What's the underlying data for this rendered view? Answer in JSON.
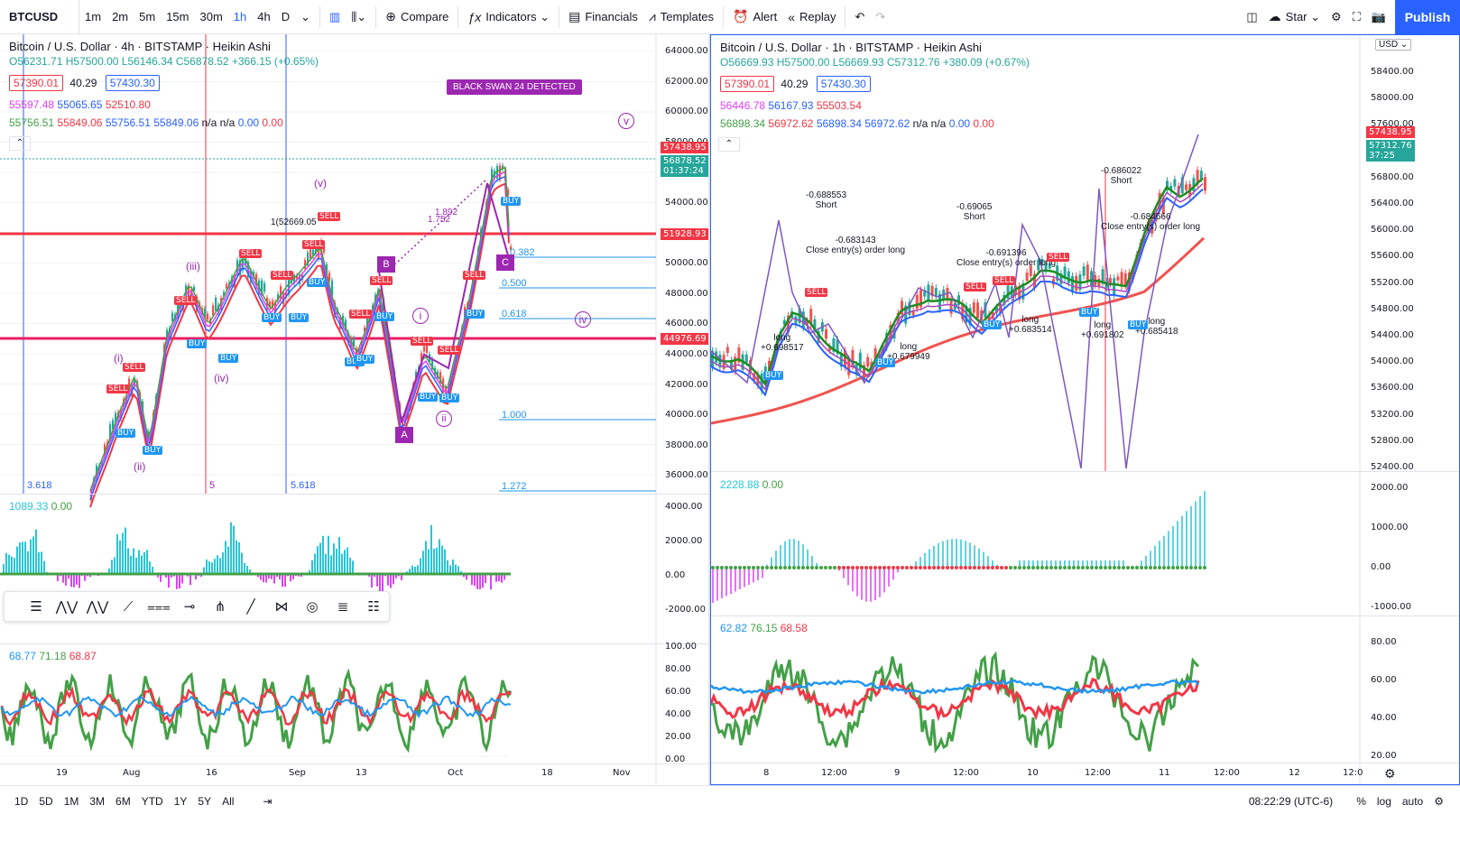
{
  "toolbar": {
    "symbol": "BTCUSD",
    "intervals": [
      "1m",
      "2m",
      "5m",
      "15m",
      "30m",
      "1h",
      "4h",
      "D"
    ],
    "active_interval": "1h",
    "compare": "Compare",
    "indicators": "Indicators",
    "financials": "Financials",
    "templates": "Templates",
    "alert": "Alert",
    "replay": "Replay",
    "star": "Star",
    "publish": "Publish"
  },
  "left_chart": {
    "title": "Bitcoin / U.S. Dollar · 4h · BITSTAMP · Heikin Ashi",
    "ohlc": "O56231.71 H57500.00 L56146.34 C56878.52 +366.15 (+0.65%)",
    "bid": "57390.01",
    "spread": "40.29",
    "ask": "57430.30",
    "ind1": [
      "55597.48",
      "55065.65",
      "52510.80"
    ],
    "ind2": [
      "55756.51",
      "55849.06",
      "55756.51",
      "55849.06",
      "n/a",
      "n/a",
      "0.00",
      "0.00"
    ],
    "price_axis": [
      "64000.00",
      "62000.00",
      "60000.00",
      "58000.00",
      "56000.00",
      "54000.00",
      "52000.00",
      "50000.00",
      "48000.00",
      "46000.00",
      "44000.00",
      "42000.00",
      "40000.00",
      "38000.00",
      "36000.00"
    ],
    "price_tags": {
      "last": "57438.95",
      "current": "56878.52",
      "countdown": "01:37:24",
      "red_line": "51928.93",
      "pink_line": "44976.69"
    },
    "black_swan": "BLACK SWAN 24 DETECTED",
    "fibs": [
      "0.382",
      "0.500",
      "0.618",
      "1.000",
      "1.272"
    ],
    "wave_labels": [
      "(v)",
      "(i)",
      "(ii)",
      "(iii)",
      "(iv)",
      "iv",
      "v",
      "i",
      "ii",
      "A",
      "C",
      "B"
    ],
    "elliott_ratios": [
      "1.892",
      "1.752",
      "3.618",
      "5",
      "5.618"
    ],
    "annot_left": "1(52669.05",
    "osc_legend": [
      "1089.33",
      "0.00"
    ],
    "osc_axis": [
      "4000.00",
      "2000.00",
      "0.00",
      "-2000.00"
    ],
    "rsi_legend": [
      "68.77",
      "71.18",
      "68.87"
    ],
    "rsi_axis": [
      "100.00",
      "80.00",
      "60.00",
      "40.00",
      "20.00",
      "0.00"
    ],
    "time_axis": [
      "19",
      "Aug",
      "16",
      "Sep",
      "13",
      "Oct",
      "18",
      "Nov"
    ]
  },
  "right_chart": {
    "title": "Bitcoin / U.S. Dollar · 1h · BITSTAMP · Heikin Ashi",
    "ohlc": "O56669.93 H57500.00 L56669.93 C57312.76 +380.09 (+0.67%)",
    "bid": "57390.01",
    "spread": "40.29",
    "ask": "57430.30",
    "ind1": [
      "56446.78",
      "56167.93",
      "55503.54"
    ],
    "ind2": [
      "56898.34",
      "56972.62",
      "56898.34",
      "56972.62",
      "n/a",
      "n/a",
      "0.00",
      "0.00"
    ],
    "currency": "USD",
    "price_axis": [
      "58400.00",
      "58000.00",
      "57600.00",
      "57200.00",
      "56800.00",
      "56400.00",
      "56000.00",
      "55600.00",
      "55200.00",
      "54800.00",
      "54400.00",
      "54000.00",
      "53600.00",
      "53200.00",
      "52800.00",
      "52400.00"
    ],
    "price_tags": {
      "last": "57438.95",
      "current": "57312.76",
      "countdown": "37:25"
    },
    "annotations": [
      {
        "lines": [
          "-0.688553",
          "Short"
        ]
      },
      {
        "lines": [
          "-0.683143",
          "Close entry(s) order long"
        ]
      },
      {
        "lines": [
          "-0.69065",
          "Short"
        ]
      },
      {
        "lines": [
          "-0.691396",
          "Close entry(s) order long"
        ]
      },
      {
        "lines": [
          "-0.686022",
          "Short"
        ]
      },
      {
        "lines": [
          "-0.684666",
          "Close entry(s) order long"
        ]
      },
      {
        "lines": [
          "long",
          "+0.698517"
        ]
      },
      {
        "lines": [
          "long",
          "+0.679949"
        ]
      },
      {
        "lines": [
          "long",
          "+0.683514"
        ]
      },
      {
        "lines": [
          "long",
          "+0.691802"
        ]
      },
      {
        "lines": [
          "long",
          "+0.685418"
        ]
      }
    ],
    "osc_legend": [
      "2228.88",
      "0.00"
    ],
    "osc_axis": [
      "2000.00",
      "1000.00",
      "0.00",
      "-1000.00"
    ],
    "rsi_legend": [
      "62.82",
      "76.15",
      "68.58"
    ],
    "rsi_axis": [
      "80.00",
      "60.00",
      "40.00",
      "20.00"
    ],
    "time_axis": [
      "8",
      "12:00",
      "9",
      "12:00",
      "10",
      "12:00",
      "11",
      "12:00",
      "12",
      "12:0"
    ]
  },
  "signals": {
    "buy": "BUY",
    "sell": "SELL"
  },
  "bottombar": {
    "ranges": [
      "1D",
      "5D",
      "1M",
      "3M",
      "6M",
      "YTD",
      "1Y",
      "5Y",
      "All"
    ],
    "time": "08:22:29 (UTC-6)",
    "percent": "%",
    "log": "log",
    "auto": "auto"
  },
  "colors": {
    "accent": "#2962ff",
    "red": "#f23645",
    "blue": "#2196f3",
    "green": "#43a047",
    "purple": "#9c27b0",
    "cyan": "#26c6da",
    "magenta": "#e040fb"
  }
}
